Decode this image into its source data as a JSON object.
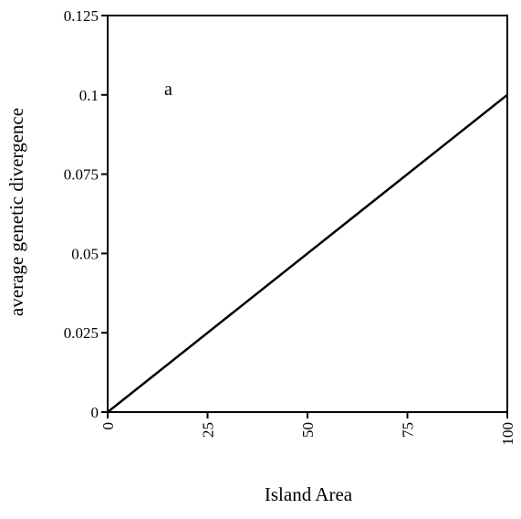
{
  "chart_data": {
    "type": "line",
    "title": "",
    "panel_label": "a",
    "xlabel": "Island Area",
    "ylabel": "average genetic divergence",
    "xlim": [
      0,
      100
    ],
    "ylim": [
      0,
      0.125
    ],
    "x_ticks": [
      0,
      25,
      50,
      75,
      100
    ],
    "x_tick_labels": [
      "0",
      "25",
      "50",
      "75",
      "100"
    ],
    "y_ticks": [
      0,
      0.025,
      0.05,
      0.075,
      0.1,
      0.125
    ],
    "y_tick_labels": [
      "0",
      "0.025",
      "0.05",
      "0.075",
      "0.1",
      "0.125"
    ],
    "x_tick_label_rotation": "vertical",
    "grid": false,
    "legend": "none",
    "series": [
      {
        "x": [
          0,
          100
        ],
        "y": [
          0,
          0.1
        ],
        "color": "#000000"
      }
    ]
  }
}
